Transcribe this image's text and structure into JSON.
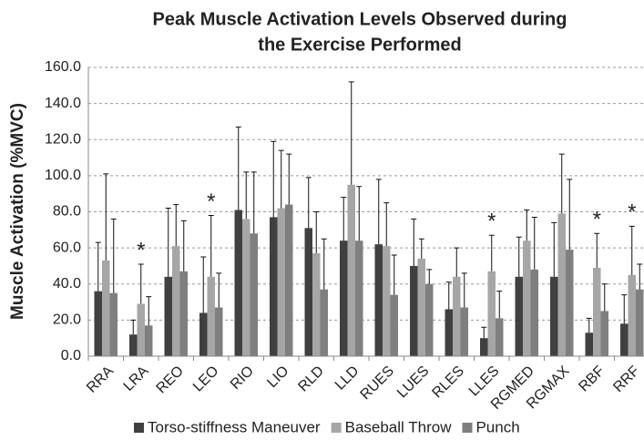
{
  "chart_data": {
    "type": "bar",
    "title": [
      "Peak Muscle Activation Levels Observed during",
      "the Exercise Performed"
    ],
    "y_label": "Muscle Activation (%MVC)",
    "categories": [
      "RRA",
      "LRA",
      "REO",
      "LEO",
      "RIO",
      "LIO",
      "RLD",
      "LLD",
      "RUES",
      "LUES",
      "RLES",
      "LLES",
      "RGMED",
      "RGMAX",
      "RBF",
      "RRF"
    ],
    "series": [
      {
        "name": "Torso-stiffness Maneuver",
        "color": "#404040",
        "values": [
          36,
          12,
          44,
          24,
          81,
          77,
          71,
          64,
          62,
          50,
          26,
          10,
          44,
          44,
          13,
          18
        ],
        "errors": [
          27,
          8,
          38,
          31,
          46,
          42,
          28,
          24,
          36,
          26,
          15,
          6,
          22,
          30,
          8,
          16
        ]
      },
      {
        "name": "Baseball Throw",
        "color": "#a6a6a6",
        "values": [
          53,
          29,
          61,
          44,
          76,
          82,
          57,
          95,
          61,
          54,
          44,
          47,
          64,
          79,
          49,
          45
        ],
        "errors": [
          48,
          22,
          23,
          34,
          26,
          32,
          23,
          57,
          24,
          11,
          16,
          20,
          17,
          33,
          19,
          27
        ]
      },
      {
        "name": "Punch",
        "color": "#7f7f7f",
        "values": [
          35,
          17,
          47,
          27,
          68,
          84,
          37,
          64,
          34,
          40,
          27,
          21,
          48,
          59,
          25,
          37
        ],
        "errors": [
          41,
          16,
          28,
          19,
          34,
          28,
          28,
          30,
          22,
          8,
          19,
          15,
          29,
          39,
          15,
          14
        ]
      }
    ],
    "significant": [
      false,
      true,
      false,
      true,
      false,
      false,
      false,
      false,
      false,
      false,
      false,
      true,
      false,
      false,
      true,
      true
    ],
    "significance_marker": "*",
    "ylim": [
      0,
      160
    ],
    "yticks": [
      {
        "value": 0,
        "label": "0.0"
      },
      {
        "value": 20,
        "label": "20.0"
      },
      {
        "value": 40,
        "label": "40.0"
      },
      {
        "value": 60,
        "label": "60.0"
      },
      {
        "value": 80,
        "label": "80.0"
      },
      {
        "value": 100,
        "label": "100.0"
      },
      {
        "value": 120,
        "label": "120.0"
      },
      {
        "value": 140,
        "label": "140.0"
      },
      {
        "value": 160,
        "label": "160.0"
      }
    ],
    "grid": true,
    "legend": "bottom"
  }
}
